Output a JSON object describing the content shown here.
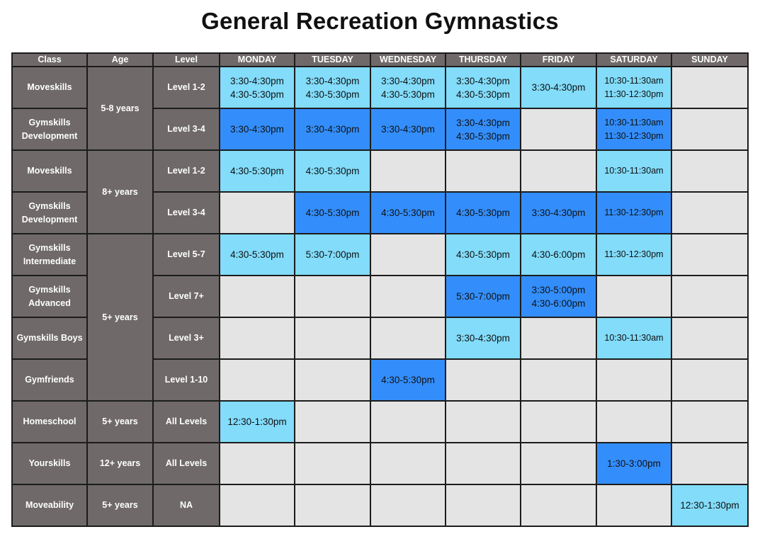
{
  "title": "General Recreation Gymnastics",
  "colors": {
    "header_bg": "#6f6a69",
    "empty_cell": "#e5e4e5",
    "light_blue": "#82dcfa",
    "dark_blue": "#338efb",
    "border": "#1c1c1c"
  },
  "headers": {
    "class": "Class",
    "age": "Age",
    "level": "Level",
    "days": [
      "MONDAY",
      "TUESDAY",
      "WEDNESDAY",
      "THURSDAY",
      "FRIDAY",
      "SATURDAY",
      "SUNDAY"
    ]
  },
  "rows": [
    {
      "class": [
        "Moveskills"
      ],
      "age": "5-8 years",
      "level": "Level 1-2",
      "cells": [
        {
          "shade": "light",
          "times": [
            "3:30-4:30pm",
            "4:30-5:30pm"
          ]
        },
        {
          "shade": "light",
          "times": [
            "3:30-4:30pm",
            "4:30-5:30pm"
          ]
        },
        {
          "shade": "light",
          "times": [
            "3:30-4:30pm",
            "4:30-5:30pm"
          ]
        },
        {
          "shade": "light",
          "times": [
            "3:30-4:30pm",
            "4:30-5:30pm"
          ]
        },
        {
          "shade": "light",
          "times": [
            "3:30-4:30pm"
          ]
        },
        {
          "shade": "light",
          "times": [
            "10:30-11:30am",
            "11:30-12:30pm"
          ]
        },
        {
          "shade": "none",
          "times": []
        }
      ]
    },
    {
      "class": [
        "Gymskills",
        "Development"
      ],
      "level": "Level 3-4",
      "cells": [
        {
          "shade": "dark",
          "times": [
            "3:30-4:30pm"
          ]
        },
        {
          "shade": "dark",
          "times": [
            "3:30-4:30pm"
          ]
        },
        {
          "shade": "dark",
          "times": [
            "3:30-4:30pm"
          ]
        },
        {
          "shade": "dark",
          "times": [
            "3:30-4:30pm",
            "4:30-5:30pm"
          ]
        },
        {
          "shade": "none",
          "times": []
        },
        {
          "shade": "dark",
          "times": [
            "10:30-11:30am",
            "11:30-12:30pm"
          ]
        },
        {
          "shade": "none",
          "times": []
        }
      ]
    },
    {
      "class": [
        "Moveskills"
      ],
      "age": "8+ years",
      "level": "Level 1-2",
      "cells": [
        {
          "shade": "light",
          "times": [
            "4:30-5:30pm"
          ]
        },
        {
          "shade": "light",
          "times": [
            "4:30-5:30pm"
          ]
        },
        {
          "shade": "none",
          "times": []
        },
        {
          "shade": "none",
          "times": []
        },
        {
          "shade": "none",
          "times": []
        },
        {
          "shade": "light",
          "times": [
            "10:30-11:30am"
          ]
        },
        {
          "shade": "none",
          "times": []
        }
      ]
    },
    {
      "class": [
        "Gymskills",
        "Development"
      ],
      "level": "Level 3-4",
      "cells": [
        {
          "shade": "none",
          "times": []
        },
        {
          "shade": "dark",
          "times": [
            "4:30-5:30pm"
          ]
        },
        {
          "shade": "dark",
          "times": [
            "4:30-5:30pm"
          ]
        },
        {
          "shade": "dark",
          "times": [
            "4:30-5:30pm"
          ]
        },
        {
          "shade": "dark",
          "times": [
            "3:30-4:30pm"
          ]
        },
        {
          "shade": "dark",
          "times": [
            "11:30-12:30pm"
          ]
        },
        {
          "shade": "none",
          "times": []
        }
      ]
    },
    {
      "class": [
        "Gymskills",
        "Intermediate"
      ],
      "age": "5+ years",
      "level": "Level 5-7",
      "cells": [
        {
          "shade": "light",
          "times": [
            "4:30-5:30pm"
          ]
        },
        {
          "shade": "light",
          "times": [
            "5:30-7:00pm"
          ]
        },
        {
          "shade": "none",
          "times": []
        },
        {
          "shade": "light",
          "times": [
            "4:30-5:30pm"
          ]
        },
        {
          "shade": "light",
          "times": [
            "4:30-6:00pm"
          ]
        },
        {
          "shade": "light",
          "times": [
            "11:30-12:30pm"
          ]
        },
        {
          "shade": "none",
          "times": []
        }
      ]
    },
    {
      "class": [
        "Gymskills",
        "Advanced"
      ],
      "level": "Level 7+",
      "cells": [
        {
          "shade": "none",
          "times": []
        },
        {
          "shade": "none",
          "times": []
        },
        {
          "shade": "none",
          "times": []
        },
        {
          "shade": "dark",
          "times": [
            "5:30-7:00pm"
          ]
        },
        {
          "shade": "dark",
          "times": [
            "3:30-5:00pm",
            "4:30-6:00pm"
          ]
        },
        {
          "shade": "none",
          "times": []
        },
        {
          "shade": "none",
          "times": []
        }
      ]
    },
    {
      "class": [
        "Gymskills Boys"
      ],
      "level": "Level 3+",
      "cells": [
        {
          "shade": "none",
          "times": []
        },
        {
          "shade": "none",
          "times": []
        },
        {
          "shade": "none",
          "times": []
        },
        {
          "shade": "light",
          "times": [
            "3:30-4:30pm"
          ]
        },
        {
          "shade": "none",
          "times": []
        },
        {
          "shade": "light",
          "times": [
            "10:30-11:30am"
          ]
        },
        {
          "shade": "none",
          "times": []
        }
      ]
    },
    {
      "class": [
        "Gymfriends"
      ],
      "level": "Level 1-10",
      "cells": [
        {
          "shade": "none",
          "times": []
        },
        {
          "shade": "none",
          "times": []
        },
        {
          "shade": "dark",
          "times": [
            "4:30-5:30pm"
          ]
        },
        {
          "shade": "none",
          "times": []
        },
        {
          "shade": "none",
          "times": []
        },
        {
          "shade": "none",
          "times": []
        },
        {
          "shade": "none",
          "times": []
        }
      ]
    },
    {
      "class": [
        "Homeschool"
      ],
      "age": "5+ years",
      "level": "All Levels",
      "cells": [
        {
          "shade": "light",
          "times": [
            "12:30-1:30pm"
          ]
        },
        {
          "shade": "none",
          "times": []
        },
        {
          "shade": "none",
          "times": []
        },
        {
          "shade": "none",
          "times": []
        },
        {
          "shade": "none",
          "times": []
        },
        {
          "shade": "none",
          "times": []
        },
        {
          "shade": "none",
          "times": []
        }
      ]
    },
    {
      "class": [
        "Yourskills"
      ],
      "age": "12+ years",
      "level": "All Levels",
      "cells": [
        {
          "shade": "none",
          "times": []
        },
        {
          "shade": "none",
          "times": []
        },
        {
          "shade": "none",
          "times": []
        },
        {
          "shade": "none",
          "times": []
        },
        {
          "shade": "none",
          "times": []
        },
        {
          "shade": "dark",
          "times": [
            "1:30-3:00pm"
          ]
        },
        {
          "shade": "none",
          "times": []
        }
      ]
    },
    {
      "class": [
        "Moveability"
      ],
      "age": "5+ years",
      "level": "NA",
      "cells": [
        {
          "shade": "none",
          "times": []
        },
        {
          "shade": "none",
          "times": []
        },
        {
          "shade": "none",
          "times": []
        },
        {
          "shade": "none",
          "times": []
        },
        {
          "shade": "none",
          "times": []
        },
        {
          "shade": "none",
          "times": []
        },
        {
          "shade": "light",
          "times": [
            "12:30-1:30pm"
          ]
        }
      ]
    }
  ]
}
